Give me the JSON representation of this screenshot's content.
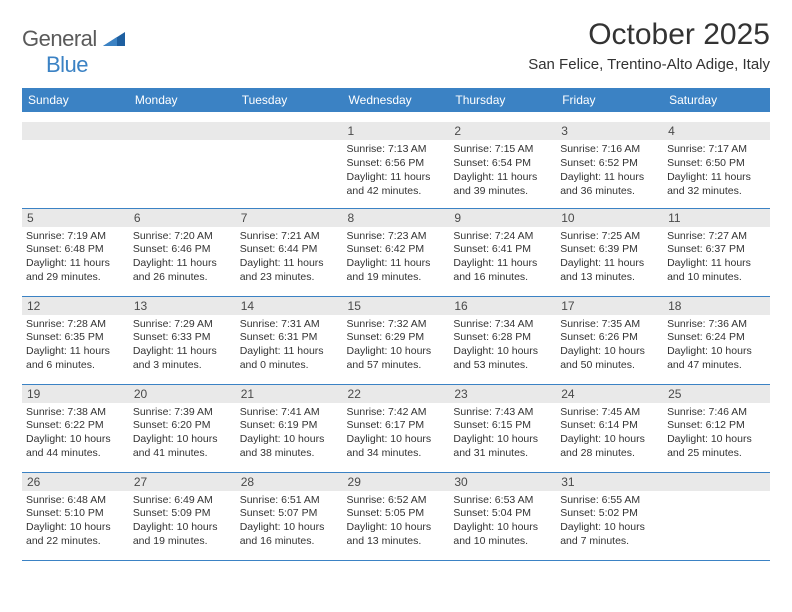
{
  "logo": {
    "word1": "General",
    "word2": "Blue"
  },
  "title": "October 2025",
  "location": "San Felice, Trentino-Alto Adige, Italy",
  "colors": {
    "header_bg": "#3b82c4",
    "header_text": "#ffffff",
    "daynum_bg": "#e9e9e9",
    "border": "#3b82c4",
    "text": "#333333",
    "logo_gray": "#5a5a5a",
    "logo_blue": "#3b82c4"
  },
  "day_names": [
    "Sunday",
    "Monday",
    "Tuesday",
    "Wednesday",
    "Thursday",
    "Friday",
    "Saturday"
  ],
  "weeks": [
    [
      {
        "n": "",
        "sr": "",
        "ss": "",
        "dl": ""
      },
      {
        "n": "",
        "sr": "",
        "ss": "",
        "dl": ""
      },
      {
        "n": "",
        "sr": "",
        "ss": "",
        "dl": ""
      },
      {
        "n": "1",
        "sr": "Sunrise: 7:13 AM",
        "ss": "Sunset: 6:56 PM",
        "dl": "Daylight: 11 hours and 42 minutes."
      },
      {
        "n": "2",
        "sr": "Sunrise: 7:15 AM",
        "ss": "Sunset: 6:54 PM",
        "dl": "Daylight: 11 hours and 39 minutes."
      },
      {
        "n": "3",
        "sr": "Sunrise: 7:16 AM",
        "ss": "Sunset: 6:52 PM",
        "dl": "Daylight: 11 hours and 36 minutes."
      },
      {
        "n": "4",
        "sr": "Sunrise: 7:17 AM",
        "ss": "Sunset: 6:50 PM",
        "dl": "Daylight: 11 hours and 32 minutes."
      }
    ],
    [
      {
        "n": "5",
        "sr": "Sunrise: 7:19 AM",
        "ss": "Sunset: 6:48 PM",
        "dl": "Daylight: 11 hours and 29 minutes."
      },
      {
        "n": "6",
        "sr": "Sunrise: 7:20 AM",
        "ss": "Sunset: 6:46 PM",
        "dl": "Daylight: 11 hours and 26 minutes."
      },
      {
        "n": "7",
        "sr": "Sunrise: 7:21 AM",
        "ss": "Sunset: 6:44 PM",
        "dl": "Daylight: 11 hours and 23 minutes."
      },
      {
        "n": "8",
        "sr": "Sunrise: 7:23 AM",
        "ss": "Sunset: 6:42 PM",
        "dl": "Daylight: 11 hours and 19 minutes."
      },
      {
        "n": "9",
        "sr": "Sunrise: 7:24 AM",
        "ss": "Sunset: 6:41 PM",
        "dl": "Daylight: 11 hours and 16 minutes."
      },
      {
        "n": "10",
        "sr": "Sunrise: 7:25 AM",
        "ss": "Sunset: 6:39 PM",
        "dl": "Daylight: 11 hours and 13 minutes."
      },
      {
        "n": "11",
        "sr": "Sunrise: 7:27 AM",
        "ss": "Sunset: 6:37 PM",
        "dl": "Daylight: 11 hours and 10 minutes."
      }
    ],
    [
      {
        "n": "12",
        "sr": "Sunrise: 7:28 AM",
        "ss": "Sunset: 6:35 PM",
        "dl": "Daylight: 11 hours and 6 minutes."
      },
      {
        "n": "13",
        "sr": "Sunrise: 7:29 AM",
        "ss": "Sunset: 6:33 PM",
        "dl": "Daylight: 11 hours and 3 minutes."
      },
      {
        "n": "14",
        "sr": "Sunrise: 7:31 AM",
        "ss": "Sunset: 6:31 PM",
        "dl": "Daylight: 11 hours and 0 minutes."
      },
      {
        "n": "15",
        "sr": "Sunrise: 7:32 AM",
        "ss": "Sunset: 6:29 PM",
        "dl": "Daylight: 10 hours and 57 minutes."
      },
      {
        "n": "16",
        "sr": "Sunrise: 7:34 AM",
        "ss": "Sunset: 6:28 PM",
        "dl": "Daylight: 10 hours and 53 minutes."
      },
      {
        "n": "17",
        "sr": "Sunrise: 7:35 AM",
        "ss": "Sunset: 6:26 PM",
        "dl": "Daylight: 10 hours and 50 minutes."
      },
      {
        "n": "18",
        "sr": "Sunrise: 7:36 AM",
        "ss": "Sunset: 6:24 PM",
        "dl": "Daylight: 10 hours and 47 minutes."
      }
    ],
    [
      {
        "n": "19",
        "sr": "Sunrise: 7:38 AM",
        "ss": "Sunset: 6:22 PM",
        "dl": "Daylight: 10 hours and 44 minutes."
      },
      {
        "n": "20",
        "sr": "Sunrise: 7:39 AM",
        "ss": "Sunset: 6:20 PM",
        "dl": "Daylight: 10 hours and 41 minutes."
      },
      {
        "n": "21",
        "sr": "Sunrise: 7:41 AM",
        "ss": "Sunset: 6:19 PM",
        "dl": "Daylight: 10 hours and 38 minutes."
      },
      {
        "n": "22",
        "sr": "Sunrise: 7:42 AM",
        "ss": "Sunset: 6:17 PM",
        "dl": "Daylight: 10 hours and 34 minutes."
      },
      {
        "n": "23",
        "sr": "Sunrise: 7:43 AM",
        "ss": "Sunset: 6:15 PM",
        "dl": "Daylight: 10 hours and 31 minutes."
      },
      {
        "n": "24",
        "sr": "Sunrise: 7:45 AM",
        "ss": "Sunset: 6:14 PM",
        "dl": "Daylight: 10 hours and 28 minutes."
      },
      {
        "n": "25",
        "sr": "Sunrise: 7:46 AM",
        "ss": "Sunset: 6:12 PM",
        "dl": "Daylight: 10 hours and 25 minutes."
      }
    ],
    [
      {
        "n": "26",
        "sr": "Sunrise: 6:48 AM",
        "ss": "Sunset: 5:10 PM",
        "dl": "Daylight: 10 hours and 22 minutes."
      },
      {
        "n": "27",
        "sr": "Sunrise: 6:49 AM",
        "ss": "Sunset: 5:09 PM",
        "dl": "Daylight: 10 hours and 19 minutes."
      },
      {
        "n": "28",
        "sr": "Sunrise: 6:51 AM",
        "ss": "Sunset: 5:07 PM",
        "dl": "Daylight: 10 hours and 16 minutes."
      },
      {
        "n": "29",
        "sr": "Sunrise: 6:52 AM",
        "ss": "Sunset: 5:05 PM",
        "dl": "Daylight: 10 hours and 13 minutes."
      },
      {
        "n": "30",
        "sr": "Sunrise: 6:53 AM",
        "ss": "Sunset: 5:04 PM",
        "dl": "Daylight: 10 hours and 10 minutes."
      },
      {
        "n": "31",
        "sr": "Sunrise: 6:55 AM",
        "ss": "Sunset: 5:02 PM",
        "dl": "Daylight: 10 hours and 7 minutes."
      },
      {
        "n": "",
        "sr": "",
        "ss": "",
        "dl": ""
      }
    ]
  ]
}
